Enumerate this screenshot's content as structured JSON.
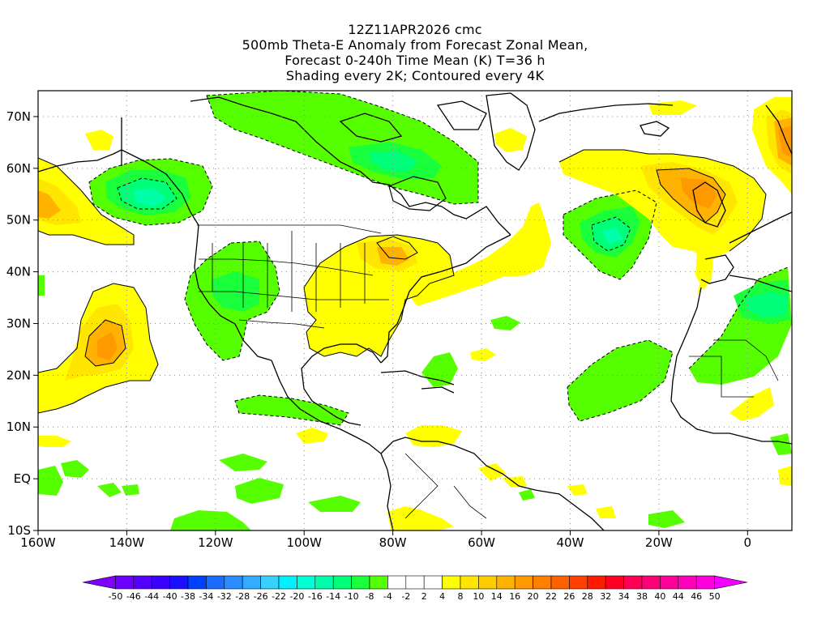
{
  "title": {
    "line1": "12Z11APR2026 cmc",
    "line2": "500mb Theta-E Anomaly from Forecast Zonal Mean,",
    "line3": "Forecast 0-240h Time Mean (K) T=36 h",
    "line4": "Shading every 2K; Contoured every 4K"
  },
  "map": {
    "lon_range": [
      -160,
      10
    ],
    "lat_range": [
      -10,
      75
    ],
    "lon_ticks": [
      "160W",
      "140W",
      "120W",
      "100W",
      "80W",
      "60W",
      "40W",
      "20W",
      "0"
    ],
    "lat_ticks": [
      "70N",
      "60N",
      "50N",
      "40N",
      "30N",
      "20N",
      "10N",
      "EQ",
      "10S"
    ],
    "grid": "dotted"
  },
  "colorbar": {
    "labels": [
      "-50",
      "-46",
      "-44",
      "-40",
      "-38",
      "-34",
      "-32",
      "-28",
      "-26",
      "-22",
      "-20",
      "-16",
      "-14",
      "-10",
      "-8",
      "-4",
      "-2",
      "2",
      "4",
      "8",
      "10",
      "14",
      "16",
      "20",
      "22",
      "26",
      "28",
      "32",
      "34",
      "38",
      "40",
      "44",
      "46",
      "50"
    ],
    "colors": [
      "#8000ff",
      "#6a00ff",
      "#5500ff",
      "#3a00ff",
      "#1c0eff",
      "#0040ff",
      "#1c6bff",
      "#2a8cff",
      "#33acff",
      "#38d0ff",
      "#00f0ff",
      "#00ffd5",
      "#00ffa8",
      "#00ff78",
      "#1aff3c",
      "#55ff00",
      "#ffffff",
      "#ffffff",
      "#ffffff",
      "#ffff00",
      "#ffe600",
      "#ffcc00",
      "#ffb300",
      "#ff9900",
      "#ff7f00",
      "#ff6000",
      "#ff4000",
      "#ff1a00",
      "#ff0022",
      "#ff0055",
      "#ff0077",
      "#ff0099",
      "#ff00bb",
      "#ff00dd",
      "#ee00ff"
    ]
  }
}
